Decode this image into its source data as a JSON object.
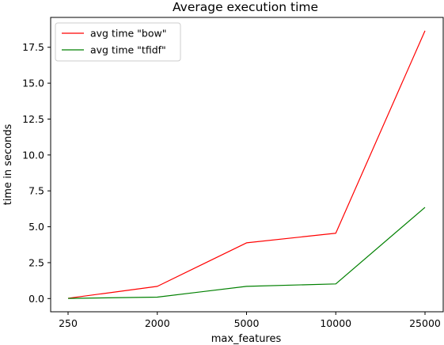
{
  "chart_data": {
    "type": "line",
    "title": "Average execution time",
    "xlabel": "max_features",
    "ylabel": "time in seconds",
    "categories": [
      "250",
      "2000",
      "5000",
      "10000",
      "25000"
    ],
    "series": [
      {
        "name": "avg time \"bow\"",
        "color": "#ff0000",
        "values": [
          0.02,
          0.85,
          3.88,
          4.55,
          18.65
        ]
      },
      {
        "name": "avg time \"tfidf\"",
        "color": "#008000",
        "values": [
          0.01,
          0.1,
          0.85,
          1.02,
          6.35
        ]
      }
    ],
    "yticks": [
      "0.0",
      "2.5",
      "5.0",
      "7.5",
      "10.0",
      "12.5",
      "15.0",
      "17.5"
    ],
    "ytick_values": [
      0,
      2.5,
      5,
      7.5,
      10,
      12.5,
      15,
      17.5
    ],
    "ylim": [
      -0.92,
      19.58
    ],
    "legend_position": "upper-left",
    "grid": false
  }
}
